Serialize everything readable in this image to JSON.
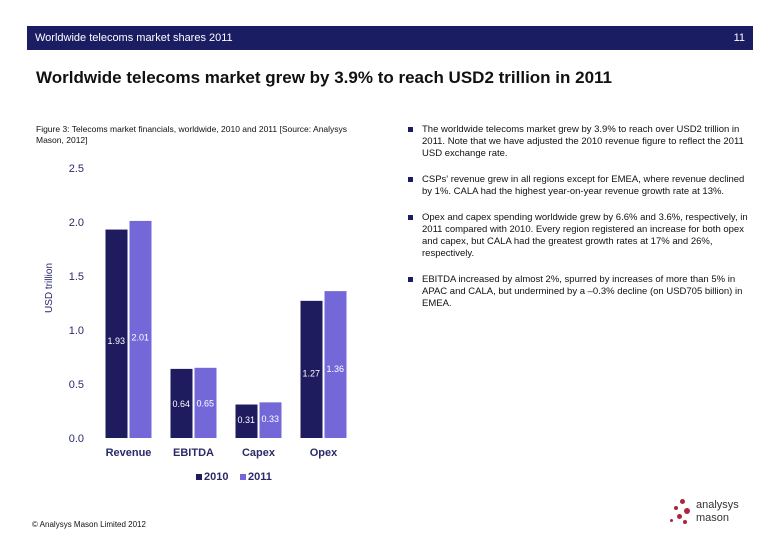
{
  "header": {
    "title": "Worldwide telecoms market shares 2011",
    "page_number": "11"
  },
  "headline": "Worldwide telecoms market grew by 3.9% to reach USD2 trillion in 2011",
  "figure_caption": "Figure 3: Telecoms market financials, worldwide, 2010 and 2011 [Source: Analysys Mason, 2012]",
  "bullets": [
    "The worldwide telecoms market grew by 3.9% to reach over USD2 trillion in 2011. Note that we have adjusted the 2010 revenue figure to reflect the 2011 USD exchange rate.",
    "CSPs' revenue grew in all regions except for EMEA, where revenue declined by 1%. CALA had the highest year-on-year revenue growth rate at 13%.",
    "Opex and capex spending worldwide grew by 6.6% and 3.6%, respectively, in 2011 compared with 2010. Every region registered an increase for both opex and capex, but CALA had the greatest growth rates at 17% and 26%, respectively.",
    "EBITDA increased by almost 2%, spurred by increases of more than 5% in APAC and CALA, but undermined by a –0.3% decline (on USD705 billion) in EMEA."
  ],
  "footer": {
    "copyright": "© Analysys Mason Limited 2012"
  },
  "logo": {
    "line1": "analysys",
    "line2": "mason"
  },
  "colors": {
    "header_bg": "#1b1d63",
    "series_2010": "#1e1b5e",
    "series_2011": "#7468d8",
    "logo_dots": "#b0233b"
  },
  "chart_data": {
    "type": "bar",
    "categories": [
      "Revenue",
      "EBITDA",
      "Capex",
      "Opex"
    ],
    "series": [
      {
        "name": "2010",
        "values": [
          1.93,
          0.64,
          0.31,
          1.27
        ],
        "labels": [
          "1.93",
          "0.64",
          "0.31",
          "1.27"
        ]
      },
      {
        "name": "2011",
        "values": [
          2.01,
          0.65,
          0.33,
          1.36
        ],
        "labels": [
          "2.01",
          "0.65",
          "0.33",
          "1.36"
        ]
      }
    ],
    "ylabel": "USD trillion",
    "ylim": [
      0,
      2.5
    ],
    "yticks": [
      "0.0",
      "0.5",
      "1.0",
      "1.5",
      "2.0",
      "2.5"
    ],
    "ytick_values": [
      0,
      0.5,
      1.0,
      1.5,
      2.0,
      2.5
    ],
    "legend_position": "bottom",
    "grid": false
  }
}
